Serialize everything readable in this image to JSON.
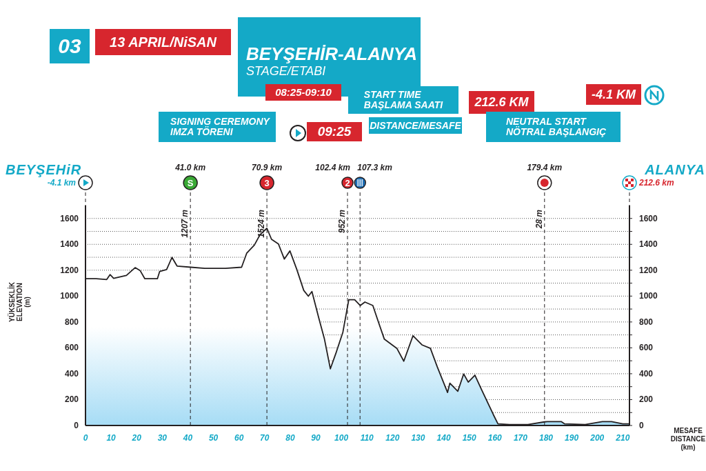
{
  "chart_data": {
    "type": "area",
    "title": "BEYŞEHİR-ALANYA",
    "subtitle": "STAGE/ETABI",
    "xlabel": "MESAFE\nDISTANCE\n(km)",
    "ylabel": "YÜKSEKLİK\nELEVATION\n(m)",
    "x": [
      0,
      4.2,
      8.3,
      9.6,
      11,
      16,
      19.4,
      21.4,
      23.2,
      28.1,
      29,
      31.7,
      33.8,
      35.8,
      41.2,
      46.6,
      54.7,
      61,
      63,
      66,
      68.2,
      70.9,
      72.7,
      75.4,
      77.7,
      79.9,
      82.6,
      85.3,
      87.1,
      88.5,
      91.2,
      93.4,
      95.7,
      97.9,
      100.6,
      102.9,
      105.2,
      107.4,
      109.2,
      112.3,
      114.6,
      116.8,
      121.7,
      124.4,
      128,
      131.6,
      134.8,
      137.5,
      141.5,
      142.4,
      145.5,
      147.8,
      149.6,
      152.2,
      154.9,
      159.4,
      161.2,
      165.7,
      172.9,
      179.4,
      180.5,
      185.9,
      187.2,
      195.3,
      202,
      205.6,
      210,
      212.6
    ],
    "series": [
      {
        "color": "#231f20",
        "values": [
          1134,
          1134,
          1128,
          1166,
          1137,
          1160,
          1220,
          1196,
          1134,
          1134,
          1191,
          1205,
          1299,
          1232,
          1223,
          1214,
          1214,
          1223,
          1331,
          1394,
          1474,
          1524,
          1439,
          1403,
          1286,
          1349,
          1205,
          1044,
          999,
          1035,
          829,
          667,
          438,
          560,
          721,
          972,
          972,
          927,
          954,
          927,
          793,
          667,
          596,
          497,
          694,
          622,
          596,
          452,
          255,
          327,
          264,
          398,
          335,
          389,
          273,
          84,
          13,
          7,
          7,
          28,
          30,
          30,
          13,
          7,
          30,
          30,
          13,
          13
        ]
      }
    ],
    "xlim": [
      0,
      212.6
    ],
    "xticks": [
      0,
      10,
      20,
      30,
      40,
      50,
      60,
      70,
      80,
      90,
      100,
      110,
      120,
      130,
      140,
      150,
      160,
      170,
      180,
      190,
      200,
      210
    ],
    "ylim": [
      0,
      1700
    ],
    "yticks": [
      0,
      {
        "value": 100,
        "label": null
      },
      200,
      {
        "value": 300,
        "label": null
      },
      400,
      {
        "value": 500,
        "label": null
      },
      600,
      {
        "value": 700,
        "label": null
      },
      800,
      {
        "value": 900,
        "label": null
      },
      1000,
      {
        "value": 1100,
        "label": null
      },
      1200,
      {
        "value": 1300,
        "label": null
      },
      1400,
      {
        "value": 1500,
        "label": null
      },
      1600
    ],
    "y2lim": [
      0,
      1700
    ],
    "y2ticks": [
      0,
      {
        "value": 100,
        "label": null
      },
      200,
      {
        "value": 300,
        "label": null
      },
      400,
      {
        "value": 500,
        "label": null
      },
      600,
      {
        "value": 700,
        "label": null
      },
      800,
      {
        "value": 900,
        "label": null
      },
      1000,
      {
        "value": 1100,
        "label": null
      },
      1200,
      {
        "value": 1300,
        "label": null
      },
      1400,
      {
        "value": 1500,
        "label": null
      },
      1600
    ],
    "grid": "y",
    "ref_lines": [
      {
        "axis": "x",
        "value": 0,
        "label": "-4.1 km",
        "line_style": "dashed"
      },
      {
        "axis": "x",
        "value": 41.0,
        "label": "41.0 km",
        "line_style": "dashed"
      },
      {
        "axis": "x",
        "value": 70.9,
        "label": "70.9 km",
        "line_style": "dashed"
      },
      {
        "axis": "x",
        "value": 102.4,
        "label": "102.4 km",
        "line_style": "dashed"
      },
      {
        "axis": "x",
        "value": 107.3,
        "label": "107.3 km",
        "line_style": "dashed"
      },
      {
        "axis": "x",
        "value": 179.4,
        "label": "179.4 km",
        "line_style": "dashed"
      },
      {
        "axis": "x",
        "value": 212.6,
        "label": "212.6 km",
        "line_style": "dashed"
      }
    ],
    "annotations": [
      "03",
      "13 APRIL/NiSAN",
      "08:25-09:10",
      "SIGNING CEREMONY\nIMZA TÖRENI",
      "START TIME\nBAŞLAMA SAATI",
      "09:25",
      "DISTANCE/MESAFE",
      "212.6 KM",
      "NEUTRAL START\nNÖTRAL BAŞLANGIÇ",
      "-4.1 KM",
      "BEYŞEHiR",
      "ALANYA",
      "S",
      "3",
      "2",
      "1207 m",
      "1524 m",
      "952 m",
      "28 m"
    ]
  }
}
